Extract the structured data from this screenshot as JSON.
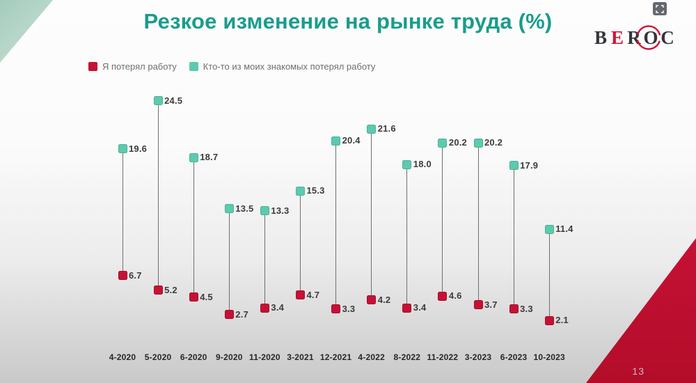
{
  "slide": {
    "title": "Резкое изменение на рынке труда (%)",
    "page_number": "13"
  },
  "theme": {
    "title_color": "#1a9c8c",
    "accent_red": "#c61135",
    "accent_teal": "#5ec9ae",
    "logo_red": "#cf1237",
    "logo_dark": "#35343c"
  },
  "logo": {
    "letters": [
      "B",
      "E",
      "R",
      "O",
      "C"
    ],
    "red_letter_index": 1
  },
  "icons": {
    "fullscreen": "fullscreen-expand-icon"
  },
  "legend": {
    "items": [
      {
        "label": "Я потерял работу",
        "color": "#c61135"
      },
      {
        "label": "Кто-то из моих знакомых потерял работу",
        "color": "#5ec9ae"
      }
    ]
  },
  "chart_data": {
    "type": "scatter",
    "subtype": "dumbbell-lollipop",
    "title": "Резкое изменение на рынке труда (%)",
    "xlabel": "",
    "ylabel": "",
    "ylim": [
      0,
      26
    ],
    "grid": false,
    "legend_position": "top-left",
    "categories": [
      "4-2020",
      "5-2020",
      "6-2020",
      "9-2020",
      "11-2020",
      "3-2021",
      "12-2021",
      "4-2022",
      "8-2022",
      "11-2022",
      "3-2023",
      "6-2023",
      "10-2023"
    ],
    "series": [
      {
        "name": "Я потерял работу",
        "color": "#c61135",
        "values": [
          6.7,
          5.2,
          4.5,
          2.7,
          3.4,
          4.7,
          3.3,
          4.2,
          3.4,
          4.6,
          3.7,
          3.3,
          2.1
        ],
        "labels": [
          "6.7",
          "5.2",
          "4.5",
          "2.7",
          "3.4",
          "4.7",
          "3.3",
          "4.2",
          "3.4",
          "4.6",
          "3.7",
          "3.3",
          "2.1"
        ]
      },
      {
        "name": "Кто-то из моих знакомых потерял работу",
        "color": "#5ec9ae",
        "values": [
          19.6,
          24.5,
          18.7,
          13.5,
          13.3,
          15.3,
          20.4,
          21.6,
          18.0,
          20.2,
          20.2,
          17.9,
          11.4
        ],
        "labels": [
          "19.6",
          "24.5",
          "18.7",
          "13.5",
          "13.3",
          "15.3",
          "20.4",
          "21.6",
          "18.0",
          "20.2",
          "20.2",
          "17.9",
          "11.4"
        ]
      }
    ]
  }
}
